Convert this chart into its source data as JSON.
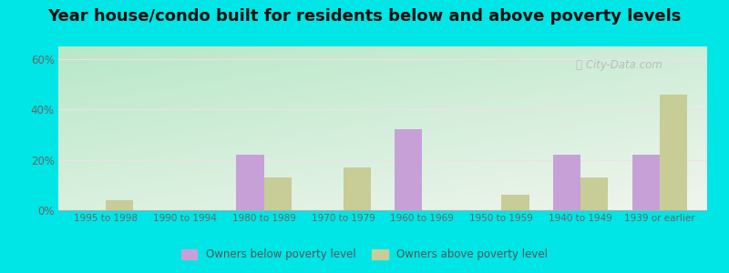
{
  "title": "Year house/condo built for residents below and above poverty levels",
  "categories": [
    "1995 to 1998",
    "1990 to 1994",
    "1980 to 1989",
    "1970 to 1979",
    "1960 to 1969",
    "1950 to 1959",
    "1940 to 1949",
    "1939 or earlier"
  ],
  "below_poverty": [
    0,
    0,
    22,
    0,
    32,
    0,
    22,
    22
  ],
  "above_poverty": [
    4,
    0,
    13,
    17,
    0,
    6,
    13,
    46
  ],
  "below_color": "#c8a0d8",
  "above_color": "#c8cc96",
  "outer_bg": "#00e5e5",
  "ylim": [
    0,
    65
  ],
  "yticks": [
    0,
    20,
    40,
    60
  ],
  "ytick_labels": [
    "0%",
    "20%",
    "40%",
    "60%"
  ],
  "legend_below_label": "Owners below poverty level",
  "legend_above_label": "Owners above poverty level",
  "bar_width": 0.35,
  "title_fontsize": 13,
  "grid_color": "#e8e8e8",
  "watermark": "City-Data.com"
}
